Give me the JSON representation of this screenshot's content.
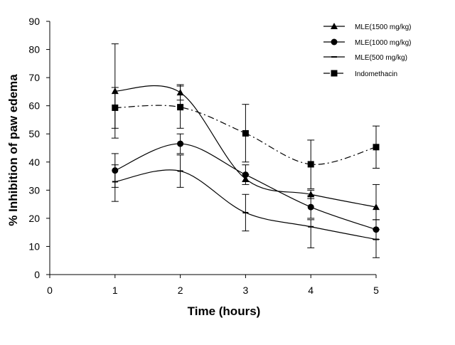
{
  "chart_data": {
    "type": "line",
    "title": "",
    "xlabel": "Time (hours)",
    "ylabel": "% Inhibition of paw edema",
    "xlim": [
      0,
      5
    ],
    "ylim": [
      0,
      90
    ],
    "x_ticks": [
      "0",
      "1",
      "2",
      "3",
      "4",
      "5"
    ],
    "y_ticks": [
      "0",
      "10",
      "20",
      "30",
      "40",
      "50",
      "60",
      "70",
      "80",
      "90"
    ],
    "x": [
      1,
      2,
      3,
      4,
      5
    ],
    "grid": false,
    "legend_position": "top-right",
    "series": [
      {
        "name": "MLE(1500 mg/kg)",
        "marker": "triangle",
        "line_style": "solid",
        "color": "#000000",
        "values": [
          65.2,
          64.7,
          34.0,
          28.5,
          24.0
        ],
        "error_up": [
          82.0,
          67.5,
          35.5,
          30.0,
          32.0
        ],
        "error_down": [
          48.5,
          62.0,
          33.0,
          27.0,
          16.0
        ]
      },
      {
        "name": "MLE(1000 mg/kg)",
        "marker": "circle",
        "line_style": "solid",
        "color": "#000000",
        "values": [
          37.0,
          46.5,
          35.5,
          24.0,
          16.0
        ],
        "error_up": [
          43.0,
          50.0,
          39.0,
          28.0,
          19.5
        ],
        "error_down": [
          31.0,
          43.0,
          32.0,
          20.0,
          12.5
        ]
      },
      {
        "name": "MLE(500 mg/kg)",
        "marker": "dash",
        "line_style": "solid",
        "color": "#000000",
        "values": [
          33.0,
          36.8,
          22.0,
          17.0,
          12.5
        ],
        "error_up": [
          39.0,
          42.5,
          28.5,
          19.5,
          19.5
        ],
        "error_down": [
          26.0,
          31.0,
          15.5,
          9.5,
          6.0
        ]
      },
      {
        "name": "Indomethacin",
        "marker": "square",
        "line_style": "dash-dot",
        "color": "#000000",
        "values": [
          59.3,
          59.5,
          50.2,
          39.2,
          45.3
        ],
        "error_up": [
          66.5,
          67.0,
          60.5,
          47.8,
          52.8
        ],
        "error_down": [
          52.0,
          52.0,
          40.0,
          30.5,
          37.8
        ]
      }
    ]
  }
}
